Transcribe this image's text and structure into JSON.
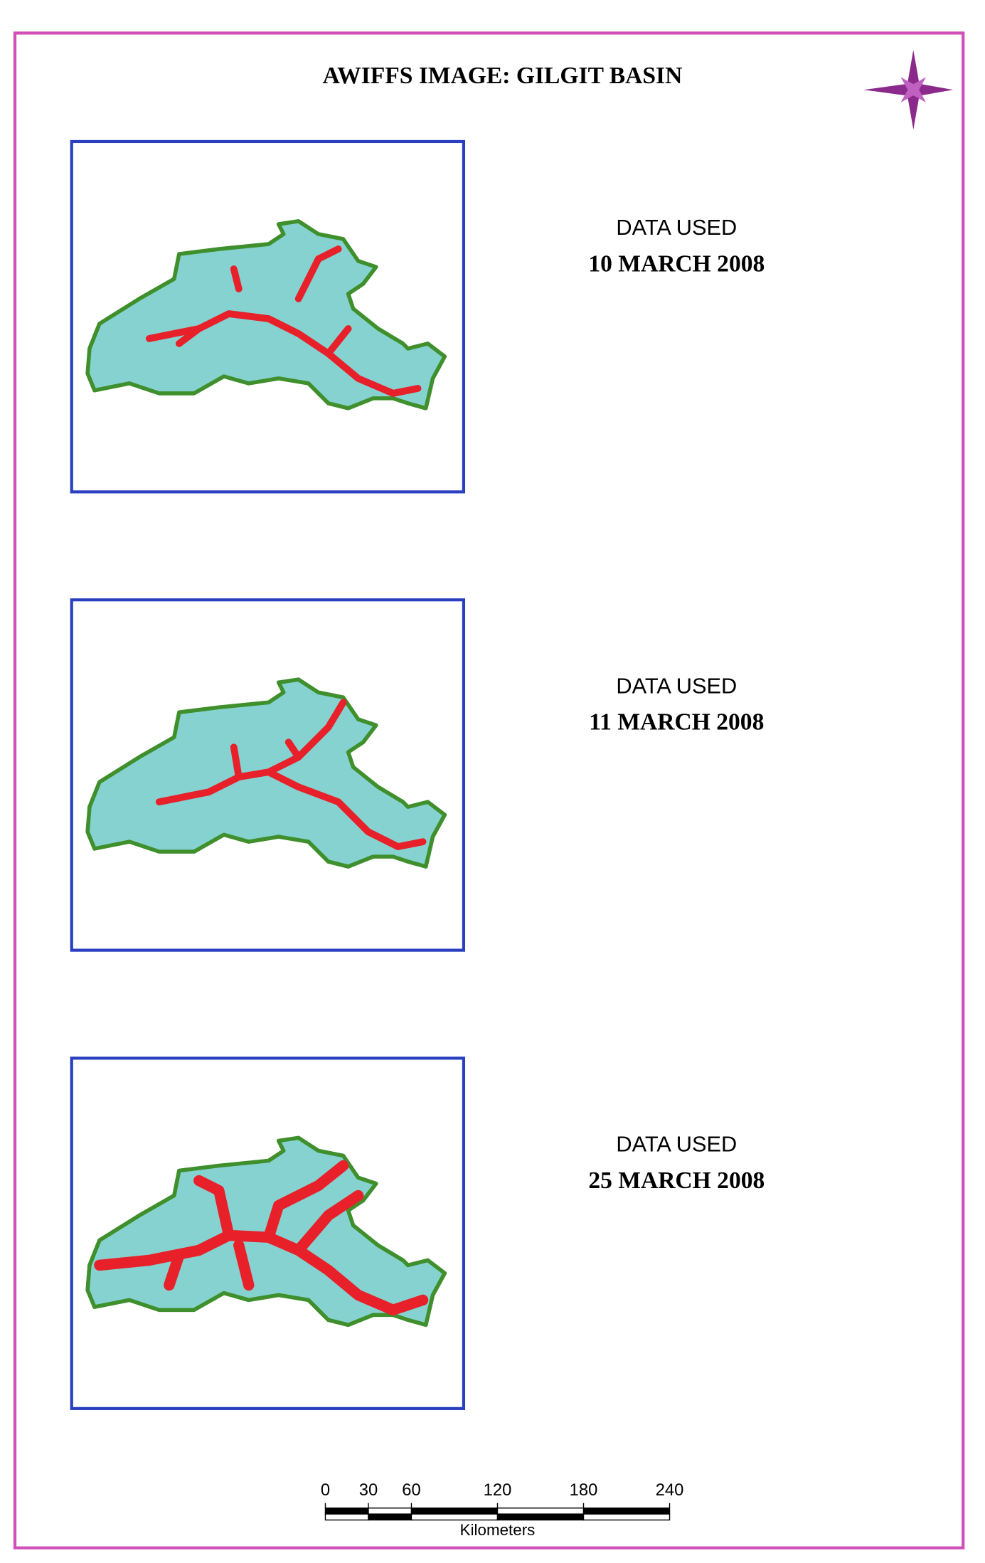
{
  "title": "AWIFFS IMAGE: GILGIT BASIN",
  "panels": [
    {
      "label": "DATA USED",
      "date": "10 MARCH 2008"
    },
    {
      "label": "DATA USED",
      "date": "11 MARCH 2008"
    },
    {
      "label": "DATA USED",
      "date": "25 MARCH 2008"
    }
  ],
  "scale_bar": {
    "ticks": [
      0,
      30,
      60,
      120,
      180,
      240
    ],
    "unit": "Kilometers"
  }
}
